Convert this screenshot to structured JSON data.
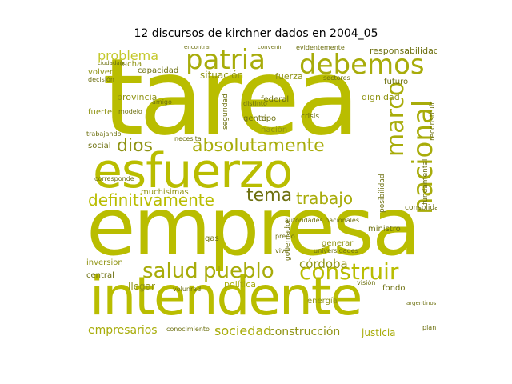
{
  "title": "12 discursos de kirchner dados en 2004_05",
  "colors": {
    "primary": "#b9bd00",
    "dark": "#6d7010",
    "light": "#d0d33c",
    "background": "#ffffff"
  },
  "words": {
    "tarea": "tarea",
    "empresa": "empresa",
    "intendente": "intendente",
    "esfuerzo": "esfuerzo",
    "patria": "patria",
    "debemos": "debemos",
    "nacional": "nacional",
    "marco": "marco",
    "absolutamente": "absolutamente",
    "dios": "dios",
    "definitivamente": "definitivamente",
    "tema": "tema",
    "trabajo": "trabajo",
    "salud": "salud",
    "pueblo": "pueblo",
    "construir": "construir",
    "problema": "problema",
    "cordoba": "córdoba",
    "sociedad": "sociedad",
    "construccion": "construcción",
    "empresarios": "empresarios",
    "justicia": "justicia",
    "responsabilidad": "responsabilidad",
    "situacion": "situación",
    "fuerza": "fuerza",
    "provincia": "provincia",
    "dignidad": "dignidad",
    "capacidad": "capacidad",
    "lucha": "lucha",
    "federal": "federal",
    "nacion": "nación",
    "gente": "gente",
    "muchisimas": "muchisimas",
    "politica": "política",
    "llegar": "llegar",
    "central": "central",
    "inversion": "inversion",
    "gas": "gas",
    "energia": "energía",
    "fondo": "fondo",
    "futuro": "futuro",
    "ministro": "ministro",
    "generar": "generar",
    "fuerte": "fuerte",
    "volver": "volver",
    "decision": "decisión",
    "necesita": "necesita",
    "fundamental": "fundamental",
    "reconstruir": "reconstruir",
    "consolidar": "consolidar",
    "posibilidad": "posibilidad",
    "seguridad": "seguridad",
    "tipo": "tipo",
    "crisis": "crisis",
    "evidentemente": "evidentemente",
    "universidades": "universidades",
    "autoridades_nacionales": "autoridades nacionales",
    "gobernador": "gobernador",
    "social": "social",
    "trabajando": "trabajando",
    "corresponde": "corresponde",
    "conocimiento": "conocimiento",
    "volunrad": "volunrad",
    "vision": "visión",
    "plan": "plan",
    "sectores": "sectores",
    "vivir": "vivir",
    "precio": "precio",
    "amigo": "amigo",
    "modelo": "modelo",
    "distinto": "distinto",
    "ciudadano": "ciudadano",
    "encontrar": "encontrar",
    "convenir": "convenir",
    "argentinos": "argentinos"
  }
}
